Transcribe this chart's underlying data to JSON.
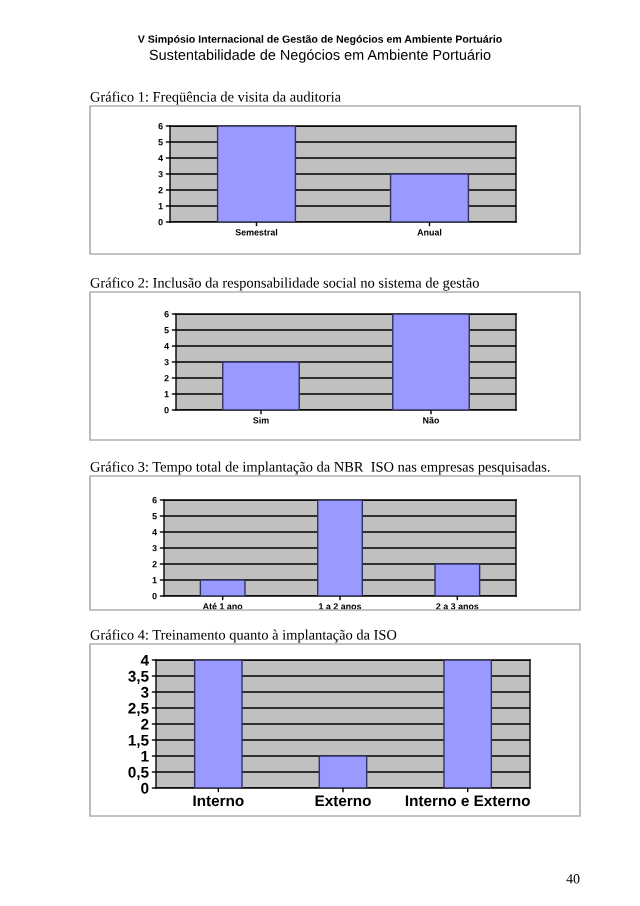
{
  "chart_data": [
    {
      "type": "bar",
      "title": "Gráfico 1: Freqüência de visita da auditoria",
      "categories": [
        "Semestral",
        "Anual"
      ],
      "values": [
        6,
        3
      ],
      "color": "#9999ff",
      "ylim": [
        0,
        6
      ],
      "yticks": [
        0,
        1,
        2,
        3,
        4,
        5,
        6
      ],
      "grid": "y",
      "annotations": [
        "V Simpósio Internacional de Gestão de Negócios em Ambiente Portuário",
        "Sustentabilidade de Negócios em Ambiente Portuário"
      ]
    },
    {
      "type": "bar",
      "title": "Gráfico 2: Inclusão da responsabilidade social no sistema de gestão",
      "categories": [
        "Sim",
        "Não"
      ],
      "values": [
        3,
        6
      ],
      "color": "#9999ff",
      "ylim": [
        0,
        6
      ],
      "yticks": [
        0,
        1,
        2,
        3,
        4,
        5,
        6
      ],
      "grid": "y"
    },
    {
      "type": "bar",
      "title": "Gráfico 3: Tempo total de implantação da NBR  ISO nas empresas pesquisadas.",
      "categories": [
        "Até 1 ano",
        "1 a 2 anos",
        "2 a 3 anos"
      ],
      "values": [
        1,
        6,
        2
      ],
      "color": "#9999ff",
      "ylim": [
        0,
        6
      ],
      "yticks": [
        0,
        1,
        2,
        3,
        4,
        5,
        6
      ],
      "grid": "y"
    },
    {
      "type": "bar",
      "title": "Gráfico 4: Treinamento quanto à implantação da ISO",
      "categories": [
        "Interno",
        "Externo",
        "Interno e Externo"
      ],
      "values": [
        4,
        1,
        4
      ],
      "color": "#9999ff",
      "ylim": [
        0,
        4
      ],
      "yticks": [
        0,
        {
          "value": 0.5,
          "label": "0,5"
        },
        1,
        {
          "value": 1.5,
          "label": "1,5"
        },
        2,
        {
          "value": 2.5,
          "label": "2,5"
        },
        3,
        {
          "value": 3.5,
          "label": "3,5"
        },
        4
      ],
      "grid": "y",
      "annotations": [
        "40"
      ]
    }
  ]
}
